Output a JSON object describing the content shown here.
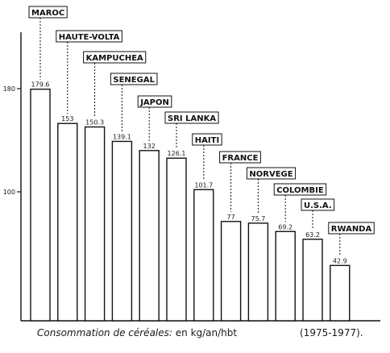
{
  "chart_data": {
    "type": "bar",
    "categories": [
      "MAROC",
      "HAUTE-VOLTA",
      "KAMPUCHEA",
      "SENEGAL",
      "JAPON",
      "SRI LANKA",
      "HAITI",
      "FRANCE",
      "NORVEGE",
      "COLOMBIE",
      "U.S.A.",
      "RWANDA"
    ],
    "values": [
      179.6,
      153,
      150.3,
      139.1,
      132,
      126.1,
      101.7,
      77,
      75.7,
      69.2,
      63.2,
      42.9
    ],
    "value_labels": [
      "179.6",
      "153",
      "150.3",
      "139.1",
      "132",
      "126.1",
      "101.7",
      "77",
      "75.7",
      "69.2",
      "63.2",
      "42.9"
    ],
    "yticks": [
      100,
      180
    ],
    "ylim": [
      0,
      190
    ],
    "grid": false,
    "bar_color": "#ffffff",
    "edge_color": "#111111"
  },
  "caption": {
    "italic": "Consommation de céréales:",
    "units": "en kg/an/hbt",
    "period": "(1975-1977)."
  }
}
